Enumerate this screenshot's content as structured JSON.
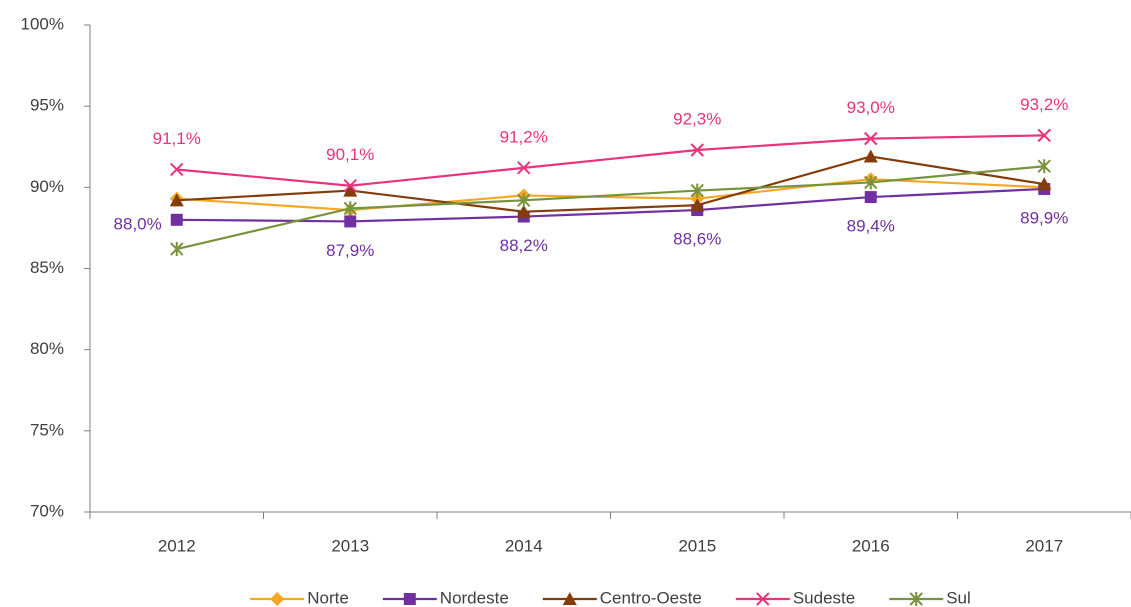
{
  "chart_data": {
    "type": "line",
    "categories": [
      "2012",
      "2013",
      "2014",
      "2015",
      "2016",
      "2017"
    ],
    "ylim": [
      70,
      100
    ],
    "yticks": [
      {
        "value": 70,
        "label": "70%"
      },
      {
        "value": 75,
        "label": "75%"
      },
      {
        "value": 80,
        "label": "80%"
      },
      {
        "value": 85,
        "label": "85%"
      },
      {
        "value": 90,
        "label": "90%"
      },
      {
        "value": 95,
        "label": "95%"
      },
      {
        "value": 100,
        "label": "100%"
      }
    ],
    "legend": "bottom",
    "series": [
      {
        "name": "Norte",
        "color": "#f5a623",
        "values": [
          89.3,
          88.6,
          89.5,
          89.3,
          90.5,
          90.0
        ]
      },
      {
        "name": "Nordeste",
        "color": "#7030a0",
        "values": [
          88.0,
          87.9,
          88.2,
          88.6,
          89.4,
          89.9
        ],
        "value_labels": [
          "88,0%",
          "87,9%",
          "88,2%",
          "88,6%",
          "89,4%",
          "89,9%"
        ]
      },
      {
        "name": "Centro-Oeste",
        "color": "#843c0c",
        "values": [
          89.2,
          89.8,
          88.5,
          88.9,
          91.9,
          90.2
        ]
      },
      {
        "name": "Sudeste",
        "color": "#e8337d",
        "values": [
          91.1,
          90.1,
          91.2,
          92.3,
          93.0,
          93.2
        ],
        "value_labels": [
          "91,1%",
          "90,1%",
          "91,2%",
          "92,3%",
          "93,0%",
          "93,2%"
        ]
      },
      {
        "name": "Sul",
        "color": "#77933c",
        "values": [
          86.2,
          88.7,
          89.2,
          89.8,
          90.3,
          91.3
        ]
      }
    ]
  }
}
